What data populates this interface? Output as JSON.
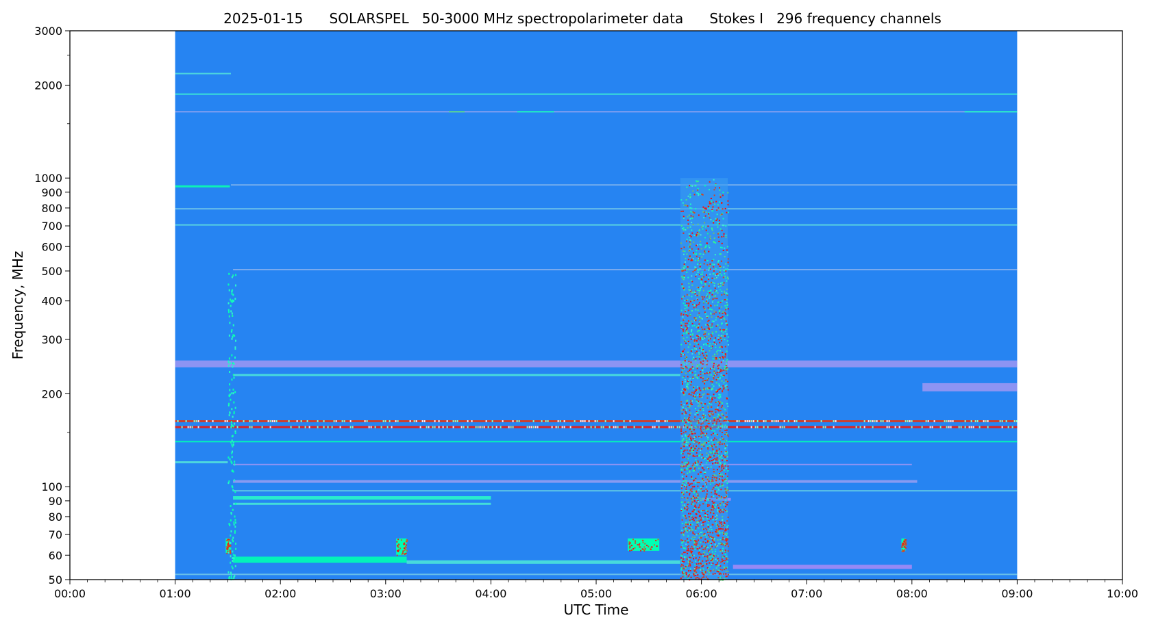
{
  "chart_data": {
    "type": "heatmap",
    "title": {
      "date": "2025-01-15",
      "instrument": "SOLARSPEL",
      "description": "50-3000 MHz spectropolarimeter data",
      "parameter": "Stokes I",
      "channels": "296 frequency channels"
    },
    "xlabel": "UTC Time",
    "ylabel": "Frequency, MHz",
    "x_axis": {
      "unit": "hours UTC",
      "range": [
        0,
        10
      ],
      "ticks": [
        {
          "value": 0,
          "label": "00:00"
        },
        {
          "value": 1,
          "label": "01:00"
        },
        {
          "value": 2,
          "label": "02:00"
        },
        {
          "value": 3,
          "label": "03:00"
        },
        {
          "value": 4,
          "label": "04:00"
        },
        {
          "value": 5,
          "label": "05:00"
        },
        {
          "value": 6,
          "label": "06:00"
        },
        {
          "value": 7,
          "label": "07:00"
        },
        {
          "value": 8,
          "label": "08:00"
        },
        {
          "value": 9,
          "label": "09:00"
        },
        {
          "value": 10,
          "label": "10:00"
        }
      ],
      "minor_ticks_per_major": 6
    },
    "y_axis": {
      "scale": "log",
      "unit": "MHz",
      "range": [
        50,
        3000
      ],
      "ticks": [
        {
          "value": 50,
          "label": "50"
        },
        {
          "value": 60,
          "label": "60"
        },
        {
          "value": 70,
          "label": "70"
        },
        {
          "value": 80,
          "label": "80"
        },
        {
          "value": 90,
          "label": "90"
        },
        {
          "value": 100,
          "label": "100"
        },
        {
          "value": 200,
          "label": "200"
        },
        {
          "value": 300,
          "label": "300"
        },
        {
          "value": 400,
          "label": "400"
        },
        {
          "value": 500,
          "label": "500"
        },
        {
          "value": 600,
          "label": "600"
        },
        {
          "value": 700,
          "label": "700"
        },
        {
          "value": 800,
          "label": "800"
        },
        {
          "value": 900,
          "label": "900"
        },
        {
          "value": 1000,
          "label": "1000"
        },
        {
          "value": 2000,
          "label": "2000"
        },
        {
          "value": 3000,
          "label": "3000"
        }
      ],
      "minor_ticks": [
        150,
        1500,
        2500
      ]
    },
    "colormap": "rainbow",
    "background_color": "#2684f2",
    "data_extent": {
      "t_start": 1.0,
      "t_end": 9.0,
      "f_min": 50,
      "f_max": 3000
    },
    "horizontal_bands": [
      {
        "freq": 2180,
        "t": [
          1.0,
          1.53
        ],
        "level": 0.34,
        "width": 2
      },
      {
        "freq": 1870,
        "t": [
          1.0,
          9.0
        ],
        "level": 0.38,
        "width": 2
      },
      {
        "freq": 1640,
        "t": [
          1.0,
          9.0
        ],
        "level": 0.22,
        "width": 2
      },
      {
        "freq": 1640,
        "t": [
          3.6,
          3.75
        ],
        "level": 0.66,
        "width": 2
      },
      {
        "freq": 1640,
        "t": [
          4.25,
          4.6
        ],
        "level": 0.48,
        "width": 2
      },
      {
        "freq": 1640,
        "t": [
          8.5,
          9.0
        ],
        "level": 0.45,
        "width": 2
      },
      {
        "freq": 940,
        "t": [
          1.0,
          1.52
        ],
        "level": 0.52,
        "width": 3
      },
      {
        "freq": 950,
        "t": [
          1.53,
          9.0
        ],
        "level": 0.25,
        "width": 2
      },
      {
        "freq": 795,
        "t": [
          1.0,
          9.0
        ],
        "level": 0.28,
        "width": 2
      },
      {
        "freq": 705,
        "t": [
          1.0,
          9.0
        ],
        "level": 0.32,
        "width": 2
      },
      {
        "freq": 505,
        "t": [
          1.55,
          9.0
        ],
        "level": 0.24,
        "width": 2
      },
      {
        "freq": 250,
        "t": [
          1.0,
          9.0
        ],
        "level": 0.2,
        "width": 10
      },
      {
        "freq": 230,
        "t": [
          1.55,
          5.8
        ],
        "level": 0.35,
        "width": 3
      },
      {
        "freq": 210,
        "t": [
          8.1,
          9.0
        ],
        "level": 0.2,
        "width": 12
      },
      {
        "freq": 163,
        "t": [
          1.0,
          9.0
        ],
        "level": 0.93,
        "width": 3
      },
      {
        "freq": 156,
        "t": [
          1.0,
          9.0
        ],
        "level": 0.97,
        "width": 3
      },
      {
        "freq": 140,
        "t": [
          1.0,
          9.0
        ],
        "level": 0.5,
        "width": 2
      },
      {
        "freq": 120,
        "t": [
          1.0,
          1.5
        ],
        "level": 0.34,
        "width": 3
      },
      {
        "freq": 118,
        "t": [
          1.55,
          8.0
        ],
        "level": 0.2,
        "width": 2
      },
      {
        "freq": 104,
        "t": [
          1.55,
          8.05
        ],
        "level": 0.21,
        "width": 4
      },
      {
        "freq": 97,
        "t": [
          1.55,
          9.0
        ],
        "level": 0.3,
        "width": 2
      },
      {
        "freq": 92,
        "t": [
          1.55,
          4.0
        ],
        "level": 0.42,
        "width": 5
      },
      {
        "freq": 88,
        "t": [
          1.55,
          4.0
        ],
        "level": 0.36,
        "width": 3
      },
      {
        "freq": 91,
        "t": [
          6.0,
          6.28
        ],
        "level": 0.18,
        "width": 4
      },
      {
        "freq": 58,
        "t": [
          1.55,
          3.2
        ],
        "level": 0.5,
        "width": 9
      },
      {
        "freq": 57,
        "t": [
          3.2,
          5.8
        ],
        "level": 0.35,
        "width": 5
      },
      {
        "freq": 55,
        "t": [
          6.3,
          8.0
        ],
        "level": 0.18,
        "width": 6
      },
      {
        "freq": 52,
        "t": [
          1.0,
          9.0
        ],
        "level": 0.28,
        "width": 2
      }
    ],
    "bursts": [
      {
        "t": [
          5.8,
          6.25
        ],
        "f": [
          50,
          1000
        ],
        "type": "noise storm"
      },
      {
        "t": [
          3.1,
          3.2
        ],
        "f": [
          60,
          68
        ],
        "type": "burst"
      },
      {
        "t": [
          5.3,
          5.6
        ],
        "f": [
          62,
          68
        ],
        "type": "burst"
      },
      {
        "t": [
          1.48,
          1.52
        ],
        "f": [
          61,
          68
        ],
        "type": "burst"
      },
      {
        "t": [
          7.9,
          7.94
        ],
        "f": [
          62,
          68
        ],
        "type": "burst"
      },
      {
        "t": [
          1.5,
          1.57
        ],
        "f": [
          50,
          500
        ],
        "type": "drift"
      }
    ]
  }
}
